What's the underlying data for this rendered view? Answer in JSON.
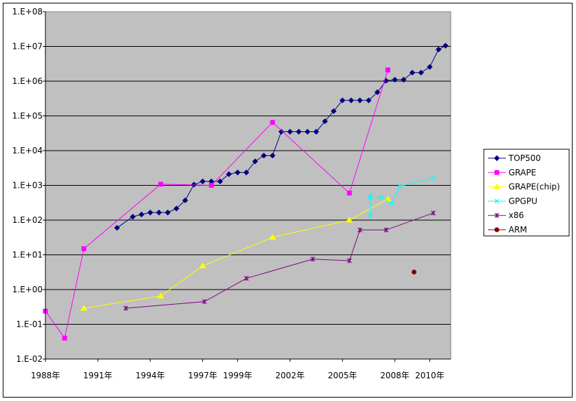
{
  "chart_data": {
    "type": "line",
    "title": "",
    "xlabel": "",
    "ylabel": "",
    "y_scale": "log",
    "ylim": [
      0.01,
      100000000
    ],
    "xlim": [
      1988.0,
      2011.2
    ],
    "y_tick_labels": [
      "1.E-02",
      "1.E-01",
      "1.E+00",
      "1.E+01",
      "1.E+02",
      "1.E+03",
      "1.E+04",
      "1.E+05",
      "1.E+06",
      "1.E+07",
      "1.E+08"
    ],
    "x_tick_labels": [
      "1988年",
      "1991年",
      "1994年",
      "1997年",
      "1999年",
      "2002年",
      "2005年",
      "2008年",
      "2010年"
    ],
    "plot_background": "#c0c0c0",
    "grid": "horizontal major",
    "legend_position": "right",
    "series": [
      {
        "name": "TOP500",
        "color": "#000080",
        "marker": "diamond",
        "points": [
          [
            1992.1,
            60
          ],
          [
            1993.0,
            125
          ],
          [
            1993.5,
            145
          ],
          [
            1994.0,
            165
          ],
          [
            1994.5,
            165
          ],
          [
            1995.0,
            165
          ],
          [
            1995.5,
            215
          ],
          [
            1996.0,
            370
          ],
          [
            1996.5,
            1050
          ],
          [
            1997.0,
            1300
          ],
          [
            1997.5,
            1300
          ],
          [
            1998.0,
            1300
          ],
          [
            1998.5,
            2100
          ],
          [
            1999.0,
            2350
          ],
          [
            1999.5,
            2350
          ],
          [
            2000.0,
            4900
          ],
          [
            2000.5,
            7200
          ],
          [
            2001.0,
            7200
          ],
          [
            2001.5,
            35000
          ],
          [
            2002.0,
            35000
          ],
          [
            2002.5,
            35000
          ],
          [
            2003.0,
            35000
          ],
          [
            2003.5,
            35000
          ],
          [
            2004.0,
            70000
          ],
          [
            2004.5,
            137000
          ],
          [
            2005.0,
            280000
          ],
          [
            2005.5,
            280000
          ],
          [
            2006.0,
            280000
          ],
          [
            2006.5,
            280000
          ],
          [
            2007.0,
            480000
          ],
          [
            2007.5,
            1030000
          ],
          [
            2008.0,
            1100000
          ],
          [
            2008.5,
            1100000
          ],
          [
            2009.0,
            1760000
          ],
          [
            2009.5,
            1760000
          ],
          [
            2010.0,
            2570000
          ],
          [
            2010.5,
            8160000
          ],
          [
            2010.9,
            10500000
          ]
        ]
      },
      {
        "name": "GRAPE",
        "color": "#ff00ff",
        "marker": "square",
        "points": [
          [
            1988.0,
            0.24
          ],
          [
            1989.1,
            0.04
          ],
          [
            1990.2,
            15
          ],
          [
            1994.6,
            1080
          ],
          [
            1997.5,
            1000
          ],
          [
            2001.0,
            65000
          ],
          [
            2005.4,
            600
          ],
          [
            2007.6,
            2100000
          ]
        ]
      },
      {
        "name": "GRAPE(chip)",
        "color": "#ffff00",
        "marker": "triangle",
        "points": [
          [
            1990.2,
            0.29
          ],
          [
            1994.6,
            0.65
          ],
          [
            1997.0,
            4.8
          ],
          [
            2001.0,
            32
          ],
          [
            2005.4,
            100
          ],
          [
            2007.6,
            400
          ]
        ]
      },
      {
        "name": "GPGPU",
        "color": "#00ffff",
        "marker": "x",
        "points": [
          [
            2006.6,
            500
          ],
          [
            2006.6,
            130
          ],
          [
            2006.6,
            450
          ],
          [
            2007.2,
            450
          ],
          [
            2007.8,
            300
          ],
          [
            2008.3,
            950
          ],
          [
            2010.2,
            1600
          ]
        ]
      },
      {
        "name": "x86",
        "color": "#800080",
        "marker": "star",
        "points": [
          [
            1992.6,
            0.29
          ],
          [
            1997.1,
            0.45
          ],
          [
            1999.5,
            2.1
          ],
          [
            2003.3,
            7.5
          ],
          [
            2005.4,
            6.8
          ],
          [
            2006.0,
            52
          ],
          [
            2007.5,
            52
          ],
          [
            2010.2,
            160
          ]
        ]
      },
      {
        "name": "ARM",
        "color": "#800000",
        "marker": "circle",
        "points": [
          [
            2009.1,
            3.2
          ]
        ]
      }
    ]
  }
}
